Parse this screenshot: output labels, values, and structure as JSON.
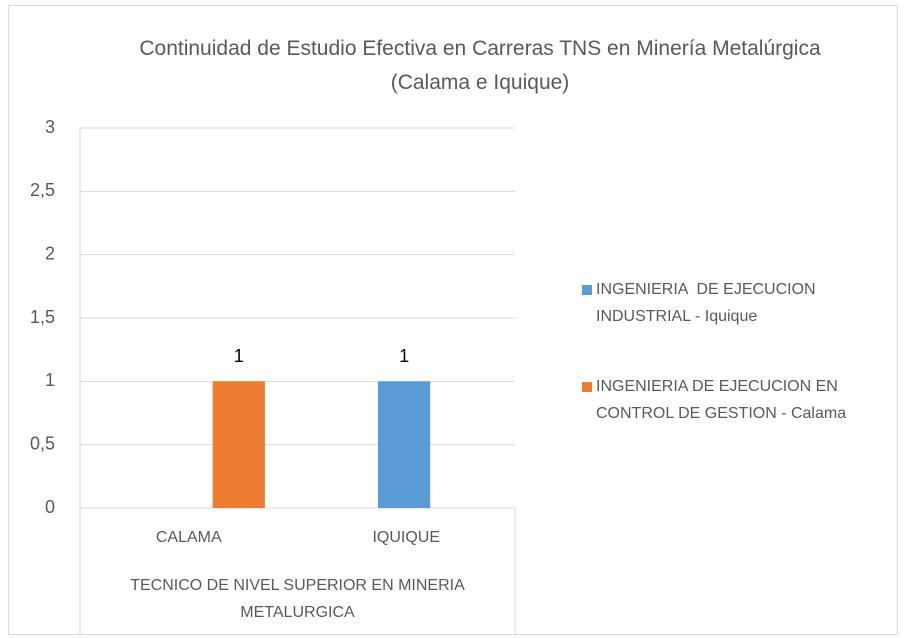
{
  "chart_data": {
    "type": "bar",
    "title": "Continuidad de Estudio Efectiva en Carreras TNS en Minería Metalúrgica (Calama e Iquique)",
    "categories": [
      "CALAMA",
      "IQUIQUE"
    ],
    "x_group_label": "TECNICO DE NIVEL SUPERIOR EN MINERIA METALURGICA",
    "series": [
      {
        "name": "INGENIERIA  DE EJECUCION INDUSTRIAL - Iquique",
        "color": "#5b9bd5",
        "values": [
          null,
          1
        ]
      },
      {
        "name": "INGENIERIA DE EJECUCION EN CONTROL DE GESTION - Calama",
        "color": "#ed7d31",
        "values": [
          1,
          null
        ]
      }
    ],
    "ylim": [
      0,
      3
    ],
    "yticks": [
      0,
      {
        "value": 0.5,
        "label": "0,5"
      },
      1,
      {
        "value": 1.5,
        "label": "1,5"
      },
      2,
      {
        "value": 2.5,
        "label": "2,5"
      },
      3
    ],
    "grid": true,
    "legend": "right"
  }
}
